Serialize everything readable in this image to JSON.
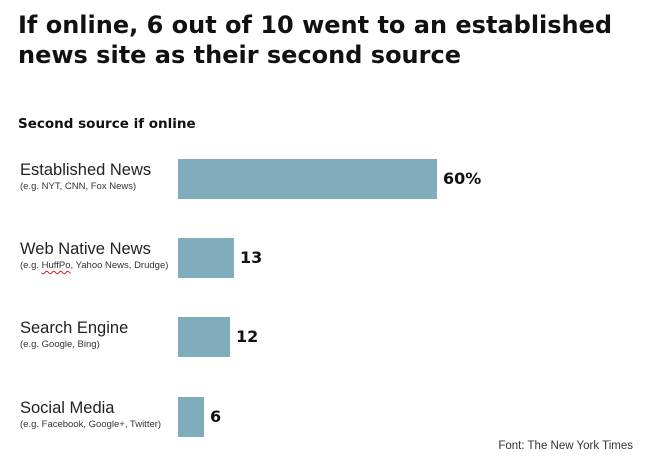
{
  "chart_data": {
    "type": "bar",
    "orientation": "horizontal",
    "title": "If online, 6 out of 10 went to an established news site as their second source",
    "subtitle": "Second source if online",
    "categories": [
      "Established News",
      "Web Native News",
      "Search Engine",
      "Social Media"
    ],
    "examples": [
      "(e.g. NYT, CNN, Fox News)",
      "(e.g. HuffPo, Yahoo News, Drudge)",
      "(e.g. Google, Bing)",
      "(e.g. Facebook, Google+, Twitter)"
    ],
    "values": [
      60,
      13,
      12,
      6
    ],
    "value_labels": [
      "60%",
      "13",
      "12",
      "6"
    ],
    "xlim": [
      0,
      60
    ],
    "grid": false,
    "bar_color": "#80adbb",
    "source": "Font: The New York Times"
  }
}
